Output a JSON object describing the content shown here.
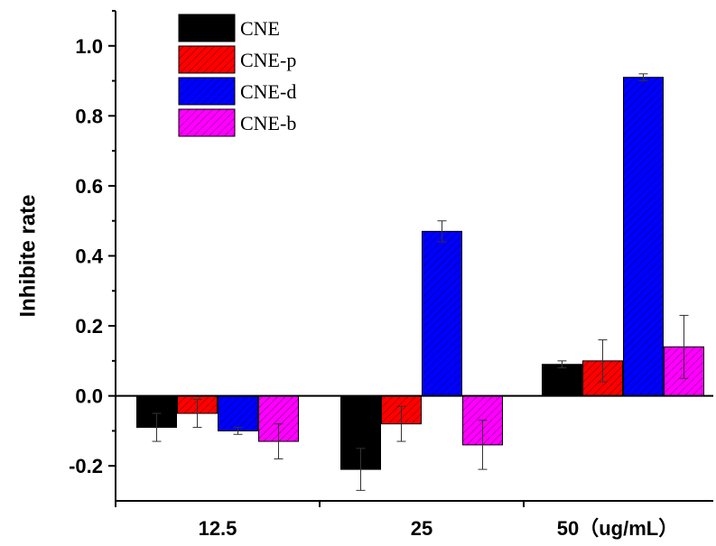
{
  "chart_data": {
    "type": "bar",
    "categories": [
      "12.5",
      "25",
      "50（ug/mL）"
    ],
    "ylabel": "Inhibite rate",
    "xlabel": "",
    "ylim": [
      -0.3,
      1.1
    ],
    "yticks": [
      "-0.2",
      "0.0",
      "0.2",
      "0.4",
      "0.6",
      "0.8",
      "1.0"
    ],
    "legend_position": "top-left",
    "series": [
      {
        "name": "CNE",
        "color": "#000000",
        "hatch": false,
        "values": [
          -0.09,
          -0.21,
          0.09
        ],
        "errors": [
          0.04,
          0.06,
          0.01
        ]
      },
      {
        "name": "CNE-p",
        "color": "#ff0000",
        "hatch": true,
        "values": [
          -0.05,
          -0.08,
          0.1
        ],
        "errors": [
          0.04,
          0.05,
          0.06
        ]
      },
      {
        "name": "CNE-d",
        "color": "#0000ff",
        "hatch": true,
        "values": [
          -0.1,
          0.47,
          0.91
        ],
        "errors": [
          0.01,
          0.03,
          0.01
        ]
      },
      {
        "name": "CNE-b",
        "color": "#ff00ff",
        "hatch": true,
        "values": [
          -0.13,
          -0.14,
          0.14
        ],
        "errors": [
          0.05,
          0.07,
          0.09
        ]
      }
    ]
  }
}
